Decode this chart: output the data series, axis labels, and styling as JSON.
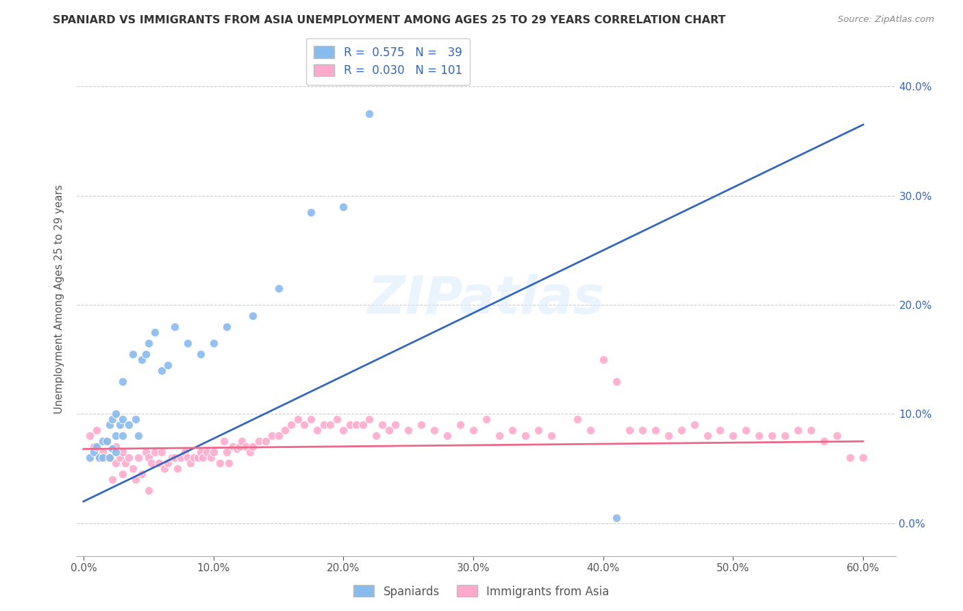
{
  "title": "SPANIARD VS IMMIGRANTS FROM ASIA UNEMPLOYMENT AMONG AGES 25 TO 29 YEARS CORRELATION CHART",
  "source": "Source: ZipAtlas.com",
  "ylabel": "Unemployment Among Ages 25 to 29 years",
  "xlim": [
    -0.005,
    0.625
  ],
  "ylim": [
    -0.03,
    0.44
  ],
  "xticks": [
    0.0,
    0.1,
    0.2,
    0.3,
    0.4,
    0.5,
    0.6
  ],
  "xticklabels": [
    "0.0%",
    "10.0%",
    "20.0%",
    "30.0%",
    "40.0%",
    "50.0%",
    "60.0%"
  ],
  "ytick_vals": [
    0.0,
    0.1,
    0.2,
    0.3,
    0.4
  ],
  "ytick_labels_right": [
    "0.0%",
    "10.0%",
    "20.0%",
    "30.0%",
    "40.0%"
  ],
  "spaniards_color": "#88BBEE",
  "immigrants_color": "#FFAACC",
  "line_spaniards_color": "#3366BB",
  "line_immigrants_color": "#EE6688",
  "watermark": "ZIPatlas",
  "spaniards_x": [
    0.005,
    0.008,
    0.01,
    0.012,
    0.015,
    0.015,
    0.018,
    0.02,
    0.02,
    0.022,
    0.022,
    0.025,
    0.025,
    0.025,
    0.028,
    0.03,
    0.03,
    0.03,
    0.035,
    0.038,
    0.04,
    0.042,
    0.045,
    0.048,
    0.05,
    0.055,
    0.06,
    0.065,
    0.07,
    0.08,
    0.09,
    0.1,
    0.11,
    0.13,
    0.15,
    0.175,
    0.2,
    0.22,
    0.41
  ],
  "spaniards_y": [
    0.06,
    0.065,
    0.07,
    0.06,
    0.06,
    0.075,
    0.075,
    0.06,
    0.09,
    0.068,
    0.095,
    0.065,
    0.08,
    0.1,
    0.09,
    0.08,
    0.095,
    0.13,
    0.09,
    0.155,
    0.095,
    0.08,
    0.15,
    0.155,
    0.165,
    0.175,
    0.14,
    0.145,
    0.18,
    0.165,
    0.155,
    0.165,
    0.18,
    0.19,
    0.215,
    0.285,
    0.29,
    0.375,
    0.005
  ],
  "immigrants_x": [
    0.005,
    0.008,
    0.01,
    0.012,
    0.015,
    0.018,
    0.02,
    0.022,
    0.025,
    0.025,
    0.028,
    0.03,
    0.03,
    0.032,
    0.035,
    0.038,
    0.04,
    0.042,
    0.045,
    0.048,
    0.05,
    0.05,
    0.052,
    0.055,
    0.058,
    0.06,
    0.062,
    0.065,
    0.068,
    0.07,
    0.072,
    0.075,
    0.078,
    0.08,
    0.082,
    0.085,
    0.088,
    0.09,
    0.092,
    0.095,
    0.098,
    0.1,
    0.105,
    0.108,
    0.11,
    0.112,
    0.115,
    0.118,
    0.12,
    0.122,
    0.125,
    0.128,
    0.13,
    0.135,
    0.14,
    0.145,
    0.15,
    0.155,
    0.16,
    0.165,
    0.17,
    0.175,
    0.18,
    0.185,
    0.19,
    0.195,
    0.2,
    0.205,
    0.21,
    0.215,
    0.22,
    0.225,
    0.23,
    0.235,
    0.24,
    0.25,
    0.26,
    0.27,
    0.28,
    0.29,
    0.3,
    0.31,
    0.32,
    0.33,
    0.34,
    0.35,
    0.36,
    0.38,
    0.39,
    0.4,
    0.41,
    0.42,
    0.43,
    0.44,
    0.45,
    0.46,
    0.47,
    0.48,
    0.49,
    0.5,
    0.51,
    0.52,
    0.53,
    0.54,
    0.55,
    0.56,
    0.57,
    0.58,
    0.59,
    0.6
  ],
  "immigrants_y": [
    0.08,
    0.07,
    0.085,
    0.06,
    0.065,
    0.075,
    0.06,
    0.04,
    0.07,
    0.055,
    0.06,
    0.045,
    0.065,
    0.055,
    0.06,
    0.05,
    0.04,
    0.06,
    0.045,
    0.065,
    0.03,
    0.06,
    0.055,
    0.065,
    0.055,
    0.065,
    0.05,
    0.055,
    0.06,
    0.06,
    0.05,
    0.06,
    0.065,
    0.06,
    0.055,
    0.06,
    0.06,
    0.065,
    0.06,
    0.065,
    0.06,
    0.065,
    0.055,
    0.075,
    0.065,
    0.055,
    0.07,
    0.068,
    0.07,
    0.075,
    0.07,
    0.065,
    0.07,
    0.075,
    0.075,
    0.08,
    0.08,
    0.085,
    0.09,
    0.095,
    0.09,
    0.095,
    0.085,
    0.09,
    0.09,
    0.095,
    0.085,
    0.09,
    0.09,
    0.09,
    0.095,
    0.08,
    0.09,
    0.085,
    0.09,
    0.085,
    0.09,
    0.085,
    0.08,
    0.09,
    0.085,
    0.095,
    0.08,
    0.085,
    0.08,
    0.085,
    0.08,
    0.095,
    0.085,
    0.15,
    0.13,
    0.085,
    0.085,
    0.085,
    0.08,
    0.085,
    0.09,
    0.08,
    0.085,
    0.08,
    0.085,
    0.08,
    0.08,
    0.08,
    0.085,
    0.085,
    0.075,
    0.08,
    0.06,
    0.06
  ],
  "line_sp_x0": 0.0,
  "line_sp_y0": 0.02,
  "line_sp_x1": 0.6,
  "line_sp_y1": 0.365,
  "line_im_x0": 0.0,
  "line_im_y0": 0.068,
  "line_im_x1": 0.6,
  "line_im_y1": 0.075
}
